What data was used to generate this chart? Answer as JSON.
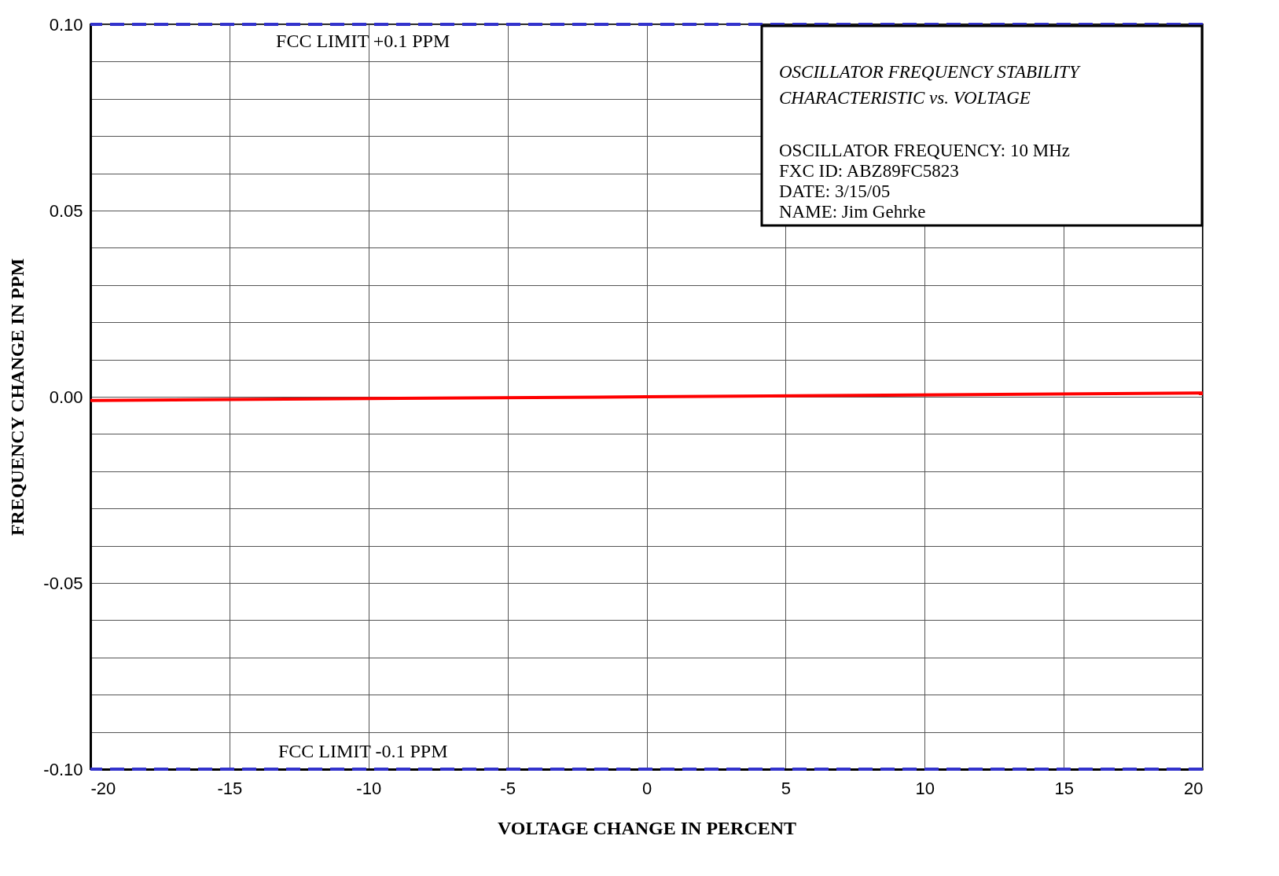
{
  "chart_data": {
    "type": "line",
    "title": "OSCILLATOR FREQUENCY STABILITY CHARACTERISTIC vs. VOLTAGE",
    "xlabel": "VOLTAGE CHANGE IN PERCENT",
    "ylabel": "FREQUENCY CHANGE IN PPM",
    "x": [
      -20,
      0,
      20
    ],
    "series": [
      {
        "color": "#ff0000",
        "values": [
          -0.001,
          0,
          0.001
        ]
      }
    ],
    "xlim": [
      -20,
      20
    ],
    "xticks": [
      -20,
      -15,
      -10,
      -5,
      0,
      5,
      10,
      15,
      20
    ],
    "ylim": [
      -0.1,
      0.1
    ],
    "yticks": [
      {
        "value": -0.1,
        "label": "-0.10"
      },
      {
        "value": -0.09,
        "label": null
      },
      {
        "value": -0.08,
        "label": null
      },
      {
        "value": -0.07,
        "label": null
      },
      {
        "value": -0.06,
        "label": null
      },
      {
        "value": -0.05,
        "label": "-0.05"
      },
      {
        "value": -0.04,
        "label": null
      },
      {
        "value": -0.03,
        "label": null
      },
      {
        "value": -0.02,
        "label": null
      },
      {
        "value": -0.01,
        "label": null
      },
      {
        "value": 0,
        "label": "0.00"
      },
      {
        "value": 0.01,
        "label": null
      },
      {
        "value": 0.02,
        "label": null
      },
      {
        "value": 0.03,
        "label": null
      },
      {
        "value": 0.04,
        "label": null
      },
      {
        "value": 0.05,
        "label": "0.05"
      },
      {
        "value": 0.06,
        "label": null
      },
      {
        "value": 0.07,
        "label": null
      },
      {
        "value": 0.08,
        "label": null
      },
      {
        "value": 0.09,
        "label": null
      },
      {
        "value": 0.1,
        "label": "0.10"
      }
    ],
    "ref_lines": [
      {
        "axis": "y",
        "value": 0.1,
        "label": "FCC LIMIT +0.1 PPM",
        "color": "#3333cc",
        "line_style": "dashed"
      },
      {
        "axis": "y",
        "value": -0.1,
        "label": "FCC LIMIT -0.1 PPM",
        "color": "#3333cc",
        "line_style": "dashed"
      }
    ],
    "annotations": [
      "OSCILLATOR FREQUENCY:  10 MHz",
      "FXC ID:  ABZ89FC5823",
      "DATE:  3/15/05",
      "NAME:  Jim Gehrke"
    ],
    "grid": true,
    "line_style": "solid",
    "marker": "none"
  }
}
